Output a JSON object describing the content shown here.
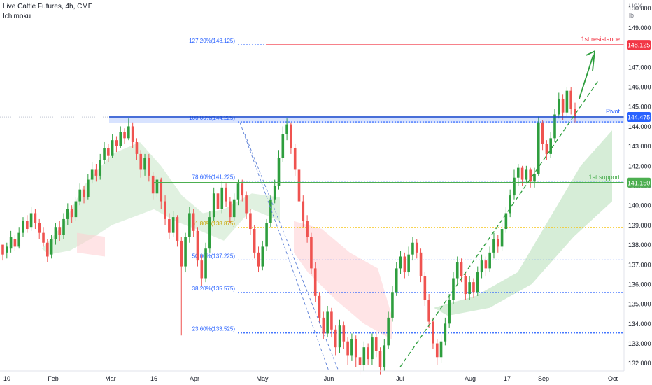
{
  "header": {
    "title": "Live Cattle Futures, 4h, CME",
    "indicator": "Ichimoku"
  },
  "axis_units": [
    "USX",
    "lb"
  ],
  "colors": {
    "up": "#26a69a",
    "up_fill": "#2e9e3e",
    "down": "#ef5350",
    "fib": "#2962ff",
    "fib_text": "#2962ff",
    "fib_618": "#f5c518",
    "resistance": "#f23645",
    "support": "#4caf50",
    "pivot_fill": "#2962ff",
    "cloud_green": "#a5d6a7",
    "cloud_red": "#ffcdd2",
    "axis_text": "#131722",
    "grid": "#f0f3fa"
  },
  "chart_data": {
    "type": "candlestick",
    "x_ticks": [
      "10",
      "Feb",
      "Mar",
      "16",
      "Apr",
      "May",
      "Jun",
      "Jul",
      "Aug",
      "17",
      "Sep",
      "Oct"
    ],
    "y_ticks": [
      "132.000",
      "133.000",
      "134.000",
      "135.000",
      "136.000",
      "137.000",
      "138.000",
      "139.000",
      "140.000",
      "141.000",
      "142.000",
      "143.000",
      "144.000",
      "145.000",
      "146.000",
      "147.000",
      "148.000",
      "149.000",
      "150.000"
    ],
    "y_range": [
      131.6,
      150.4
    ],
    "price_labels": [
      {
        "text": "148.125",
        "value": 148.125,
        "color": "#f23645"
      },
      {
        "text": "144.475",
        "value": 144.475,
        "color": "#2962ff"
      },
      {
        "text": "141.150",
        "value": 141.15,
        "color": "#4caf50"
      }
    ],
    "fib_levels": [
      {
        "label": "127.20%(148.125)",
        "value": 148.125
      },
      {
        "label": "100.00%(144.225)",
        "value": 144.225
      },
      {
        "label": "78.60%(141.225)",
        "value": 141.225
      },
      {
        "label": "61.80%(138.875)",
        "value": 138.875
      },
      {
        "label": "50.00%(137.225)",
        "value": 137.225
      },
      {
        "label": "38.20%(135.575)",
        "value": 135.575
      },
      {
        "label": "23.60%(133.525)",
        "value": 133.525
      }
    ],
    "annotations": [
      {
        "text": "1st resistance",
        "value": 148.125
      },
      {
        "text": "Pivot",
        "value": 144.475
      },
      {
        "text": "1st support",
        "value": 141.15
      }
    ],
    "candles": [
      [
        138.0,
        137.5,
        137.8,
        137.2
      ],
      [
        137.6,
        137.9,
        138.1,
        137.3
      ],
      [
        137.8,
        138.4,
        138.7,
        137.6
      ],
      [
        138.3,
        137.9,
        138.5,
        137.7
      ],
      [
        137.9,
        138.6,
        138.9,
        137.8
      ],
      [
        138.6,
        139.2,
        139.4,
        138.4
      ],
      [
        139.2,
        138.8,
        139.5,
        138.6
      ],
      [
        138.9,
        139.6,
        139.9,
        138.7
      ],
      [
        139.6,
        139.1,
        139.8,
        138.8
      ],
      [
        139.1,
        138.6,
        139.3,
        138.3
      ],
      [
        138.6,
        138.1,
        138.9,
        137.9
      ],
      [
        138.1,
        137.4,
        138.3,
        137.1
      ],
      [
        137.5,
        138.3,
        138.5,
        137.3
      ],
      [
        138.3,
        138.9,
        139.1,
        138.0
      ],
      [
        138.9,
        138.5,
        139.2,
        138.2
      ],
      [
        138.5,
        139.3,
        139.6,
        138.3
      ],
      [
        139.3,
        139.8,
        140.1,
        139.0
      ],
      [
        139.8,
        139.4,
        140.0,
        139.1
      ],
      [
        139.4,
        140.2,
        140.4,
        139.2
      ],
      [
        140.2,
        140.8,
        141.1,
        140.0
      ],
      [
        140.8,
        140.4,
        141.0,
        140.1
      ],
      [
        140.4,
        141.3,
        141.6,
        140.3
      ],
      [
        141.3,
        141.8,
        142.2,
        141.1
      ],
      [
        141.8,
        141.5,
        142.1,
        141.2
      ],
      [
        141.5,
        142.3,
        142.6,
        141.3
      ],
      [
        142.3,
        142.9,
        143.2,
        142.1
      ],
      [
        142.9,
        142.5,
        143.1,
        142.2
      ],
      [
        142.5,
        143.3,
        143.6,
        142.4
      ],
      [
        143.3,
        143.0,
        143.5,
        142.7
      ],
      [
        143.0,
        143.7,
        144.0,
        142.9
      ],
      [
        143.7,
        143.4,
        143.9,
        143.1
      ],
      [
        143.4,
        144.0,
        144.4,
        143.3
      ],
      [
        144.0,
        143.2,
        144.2,
        142.9
      ],
      [
        143.2,
        142.6,
        143.4,
        142.3
      ],
      [
        142.6,
        141.8,
        142.8,
        141.4
      ],
      [
        141.8,
        142.4,
        142.6,
        141.5
      ],
      [
        142.4,
        141.5,
        142.6,
        141.2
      ],
      [
        141.5,
        140.6,
        141.7,
        140.3
      ],
      [
        140.6,
        141.3,
        141.5,
        140.4
      ],
      [
        141.3,
        140.2,
        141.4,
        139.8
      ],
      [
        140.2,
        139.3,
        140.5,
        139.0
      ],
      [
        139.3,
        138.6,
        139.6,
        138.3
      ],
      [
        138.6,
        139.4,
        139.7,
        138.4
      ],
      [
        139.4,
        138.2,
        139.5,
        137.9
      ],
      [
        138.2,
        136.9,
        138.4,
        133.4
      ],
      [
        136.9,
        138.4,
        138.6,
        136.6
      ],
      [
        138.4,
        139.6,
        139.9,
        138.1
      ],
      [
        139.6,
        138.7,
        139.8,
        138.4
      ],
      [
        138.7,
        137.2,
        138.9,
        136.9
      ],
      [
        137.2,
        136.3,
        137.5,
        135.9
      ],
      [
        136.3,
        137.8,
        138.1,
        136.1
      ],
      [
        137.8,
        139.4,
        139.7,
        137.6
      ],
      [
        139.4,
        140.6,
        140.9,
        139.2
      ],
      [
        140.6,
        139.8,
        140.8,
        139.5
      ],
      [
        139.8,
        140.9,
        141.2,
        139.6
      ],
      [
        140.9,
        140.2,
        141.1,
        139.9
      ],
      [
        140.2,
        139.4,
        140.4,
        139.1
      ],
      [
        139.4,
        140.3,
        140.6,
        139.2
      ],
      [
        140.3,
        141.1,
        141.3,
        140.0
      ],
      [
        141.1,
        140.5,
        141.3,
        140.2
      ],
      [
        140.5,
        139.6,
        140.7,
        139.3
      ],
      [
        139.6,
        138.8,
        139.8,
        138.5
      ],
      [
        138.8,
        137.6,
        139.0,
        137.3
      ],
      [
        137.6,
        136.9,
        137.9,
        136.6
      ],
      [
        136.9,
        137.9,
        138.2,
        136.7
      ],
      [
        137.9,
        139.1,
        139.3,
        137.7
      ],
      [
        139.1,
        140.3,
        140.5,
        138.9
      ],
      [
        140.3,
        141.0,
        141.3,
        140.1
      ],
      [
        141.0,
        142.4,
        142.8,
        140.8
      ],
      [
        142.4,
        143.6,
        144.0,
        142.2
      ],
      [
        143.6,
        144.1,
        144.4,
        143.3
      ],
      [
        144.1,
        142.9,
        144.2,
        142.6
      ],
      [
        142.9,
        141.8,
        143.1,
        141.5
      ],
      [
        141.8,
        140.2,
        142.0,
        139.8
      ],
      [
        140.2,
        139.2,
        140.5,
        138.9
      ],
      [
        139.2,
        138.4,
        139.5,
        138.1
      ],
      [
        138.4,
        136.8,
        138.6,
        136.5
      ],
      [
        136.8,
        135.4,
        137.1,
        135.1
      ],
      [
        135.4,
        134.3,
        135.6,
        134.0
      ],
      [
        134.3,
        133.5,
        134.6,
        133.2
      ],
      [
        133.5,
        134.6,
        134.9,
        133.3
      ],
      [
        134.6,
        133.7,
        134.8,
        133.3
      ],
      [
        133.7,
        132.8,
        133.9,
        132.4
      ],
      [
        132.8,
        133.9,
        134.2,
        132.5
      ],
      [
        133.9,
        133.1,
        134.1,
        132.7
      ],
      [
        133.1,
        132.4,
        133.3,
        131.9
      ],
      [
        132.4,
        133.2,
        133.5,
        132.1
      ],
      [
        133.2,
        132.3,
        133.4,
        131.8
      ],
      [
        132.3,
        131.9,
        132.6,
        131.4
      ],
      [
        131.9,
        132.8,
        133.1,
        131.6
      ],
      [
        132.8,
        132.2,
        133.0,
        131.9
      ],
      [
        132.2,
        133.3,
        133.5,
        131.9
      ],
      [
        133.3,
        132.6,
        133.6,
        132.3
      ],
      [
        132.6,
        131.8,
        132.8,
        131.4
      ],
      [
        131.8,
        132.9,
        133.2,
        131.6
      ],
      [
        132.9,
        134.3,
        134.6,
        132.7
      ],
      [
        134.3,
        135.6,
        135.9,
        134.1
      ],
      [
        135.6,
        136.8,
        137.1,
        135.4
      ],
      [
        136.8,
        137.4,
        137.7,
        136.5
      ],
      [
        137.4,
        136.6,
        137.6,
        136.3
      ],
      [
        136.6,
        137.5,
        137.9,
        136.4
      ],
      [
        137.5,
        138.1,
        138.4,
        137.2
      ],
      [
        138.1,
        137.6,
        138.3,
        137.3
      ],
      [
        137.6,
        136.4,
        137.8,
        136.1
      ],
      [
        136.4,
        135.2,
        136.6,
        134.9
      ],
      [
        135.2,
        134.1,
        135.5,
        133.8
      ],
      [
        134.1,
        133.0,
        134.3,
        132.7
      ],
      [
        133.0,
        132.3,
        133.2,
        131.9
      ],
      [
        132.3,
        133.1,
        133.4,
        132.0
      ],
      [
        133.1,
        134.0,
        134.3,
        132.9
      ],
      [
        134.0,
        135.2,
        135.5,
        133.8
      ],
      [
        135.2,
        136.3,
        136.6,
        135.0
      ],
      [
        136.3,
        137.1,
        137.4,
        136.0
      ],
      [
        137.1,
        136.4,
        137.3,
        136.1
      ],
      [
        136.4,
        135.5,
        136.6,
        135.2
      ],
      [
        135.5,
        136.1,
        136.4,
        135.2
      ],
      [
        136.1,
        135.6,
        136.3,
        135.3
      ],
      [
        135.6,
        136.6,
        136.9,
        135.4
      ],
      [
        136.6,
        137.2,
        137.5,
        136.3
      ],
      [
        137.2,
        136.8,
        137.4,
        136.4
      ],
      [
        136.8,
        137.6,
        137.9,
        136.6
      ],
      [
        137.6,
        138.3,
        138.6,
        137.3
      ],
      [
        138.3,
        137.9,
        138.5,
        137.6
      ],
      [
        137.9,
        138.8,
        139.1,
        137.7
      ],
      [
        138.8,
        139.6,
        139.9,
        138.6
      ],
      [
        139.6,
        140.5,
        140.8,
        139.4
      ],
      [
        140.5,
        141.4,
        141.8,
        140.3
      ],
      [
        141.4,
        141.9,
        142.1,
        141.0
      ],
      [
        141.9,
        141.3,
        142.0,
        141.0
      ],
      [
        141.3,
        141.8,
        142.0,
        141.1
      ],
      [
        141.8,
        141.2,
        141.9,
        140.9
      ],
      [
        141.2,
        141.6,
        141.9,
        140.9
      ],
      [
        141.6,
        144.2,
        144.5,
        141.5
      ],
      [
        144.2,
        143.1,
        144.3,
        142.8
      ],
      [
        143.1,
        142.6,
        143.3,
        142.3
      ],
      [
        142.6,
        143.4,
        143.7,
        142.4
      ],
      [
        143.4,
        144.6,
        144.9,
        143.2
      ],
      [
        144.6,
        145.4,
        145.7,
        144.4
      ],
      [
        145.4,
        144.7,
        145.6,
        144.3
      ],
      [
        144.7,
        145.8,
        146.0,
        144.5
      ],
      [
        145.8,
        144.9,
        146.0,
        144.6
      ],
      [
        144.9,
        144.4,
        145.2,
        144.2
      ]
    ]
  }
}
